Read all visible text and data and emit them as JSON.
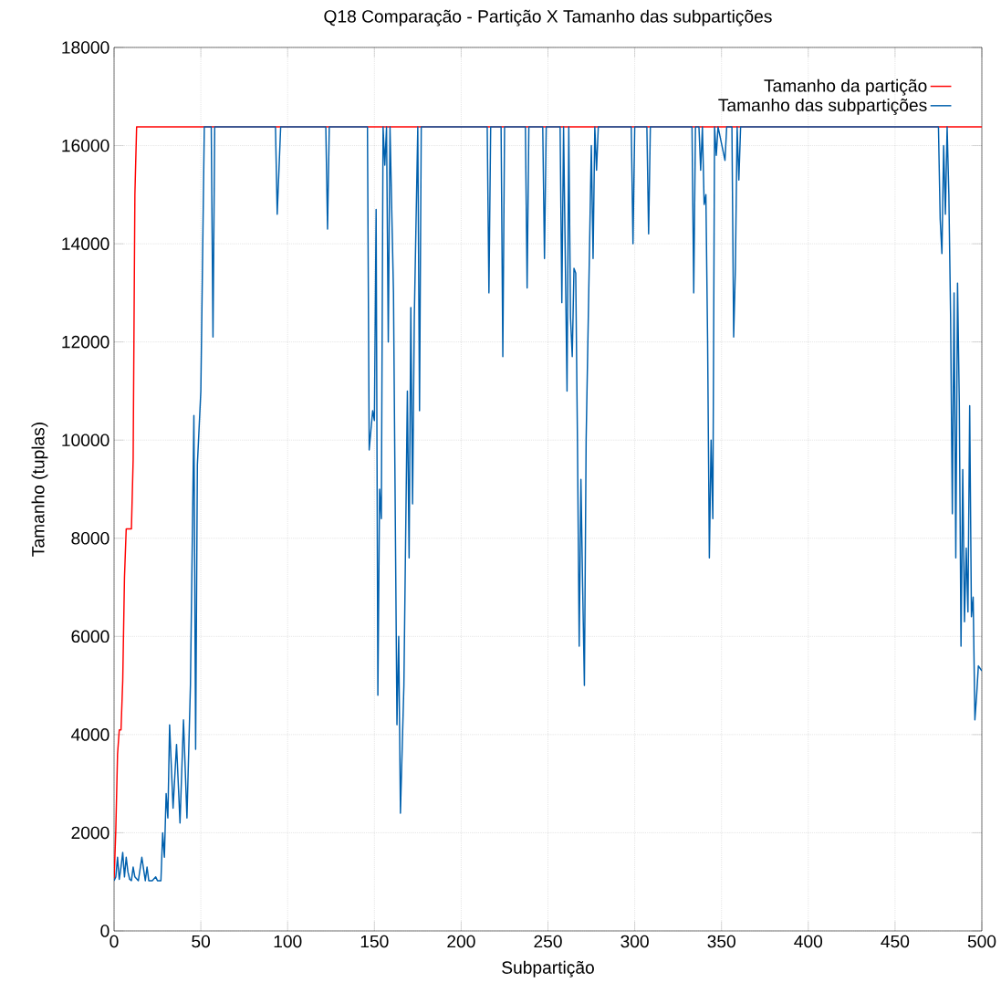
{
  "chart_data": {
    "type": "line",
    "title": "Q18 Comparação - Partição X Tamanho das subpartições",
    "xlabel": "Subpartição",
    "ylabel": "Tamanho (tuplas)",
    "xlim": [
      0,
      500
    ],
    "ylim": [
      0,
      18000
    ],
    "xticks": [
      0,
      50,
      100,
      150,
      200,
      250,
      300,
      350,
      400,
      450,
      500
    ],
    "yticks": [
      0,
      2000,
      4000,
      6000,
      8000,
      10000,
      12000,
      14000,
      16000,
      18000
    ],
    "grid": true,
    "legend": "top right",
    "series": [
      {
        "name": "Tamanho da partição",
        "color": "#ff0000",
        "x": [
          0,
          1,
          2,
          3,
          4,
          5,
          6,
          7,
          8,
          9,
          10,
          11,
          12,
          13,
          500
        ],
        "values": [
          1024,
          2048,
          3600,
          4096,
          4096,
          5100,
          7200,
          8192,
          8192,
          8192,
          8192,
          9600,
          15000,
          16384,
          16384
        ]
      },
      {
        "name": "Tamanho das subpartições",
        "color": "#0060ad",
        "x": [
          0,
          1,
          2,
          3,
          4,
          5,
          6,
          7,
          8,
          9,
          10,
          11,
          12,
          14,
          16,
          18,
          19,
          20,
          22,
          24,
          25,
          27,
          28,
          29,
          30,
          31,
          32,
          34,
          36,
          38,
          40,
          42,
          44,
          46,
          47,
          48,
          50,
          52,
          56,
          57,
          58,
          93,
          94,
          96,
          122,
          123,
          124,
          146,
          147,
          149,
          150,
          151,
          152,
          153,
          154,
          155,
          156,
          157,
          158,
          159,
          161,
          163,
          164,
          165,
          167,
          169,
          170,
          171,
          172,
          173,
          175,
          176,
          177,
          215,
          216,
          217,
          223,
          224,
          225,
          237,
          238,
          239,
          247,
          248,
          249,
          257,
          258,
          259,
          261,
          262,
          263,
          264,
          265,
          266,
          267,
          268,
          269,
          270,
          271,
          272,
          274,
          275,
          276,
          277,
          278,
          279,
          298,
          299,
          300,
          307,
          308,
          309,
          333,
          334,
          335,
          337,
          338,
          339,
          340,
          341,
          342,
          343,
          344,
          345,
          346,
          347,
          348,
          352,
          353,
          356,
          357,
          358,
          359,
          360,
          361,
          475,
          476,
          477,
          478,
          479,
          480,
          481,
          482,
          483,
          484,
          485,
          486,
          487,
          488,
          489,
          490,
          491,
          492,
          493,
          494,
          495,
          496,
          497,
          498,
          500
        ],
        "values": [
          1024,
          1100,
          1500,
          1050,
          1300,
          1600,
          1100,
          1500,
          1200,
          1050,
          1024,
          1300,
          1100,
          1024,
          1500,
          1024,
          1300,
          1024,
          1024,
          1100,
          1024,
          1024,
          2000,
          1500,
          2800,
          2300,
          4200,
          2500,
          3800,
          2200,
          4300,
          2300,
          5000,
          10500,
          3700,
          9500,
          11000,
          16384,
          16384,
          12100,
          16384,
          16384,
          14600,
          16384,
          16384,
          14300,
          16384,
          16384,
          9800,
          10600,
          10400,
          14700,
          4800,
          9000,
          8400,
          16384,
          15600,
          16384,
          12000,
          16384,
          13000,
          4200,
          6000,
          2400,
          5000,
          11000,
          7600,
          12700,
          8700,
          12500,
          16384,
          10600,
          16384,
          16384,
          13000,
          16384,
          16384,
          11700,
          16384,
          16384,
          13100,
          16384,
          16384,
          13700,
          16384,
          16384,
          12800,
          16384,
          11000,
          16384,
          12500,
          11700,
          13500,
          13400,
          10000,
          5800,
          9200,
          7000,
          5000,
          10000,
          14000,
          16000,
          13700,
          16384,
          15500,
          16384,
          16384,
          14000,
          16384,
          16384,
          14200,
          16384,
          16384,
          13000,
          16384,
          16384,
          15500,
          16384,
          14800,
          15000,
          12000,
          7600,
          10000,
          8400,
          16384,
          15800,
          16384,
          15700,
          16384,
          16384,
          12100,
          13500,
          16384,
          15300,
          16384,
          16384,
          14500,
          13800,
          16000,
          14600,
          16384,
          15000,
          12500,
          8500,
          13000,
          7600,
          13200,
          10800,
          5800,
          9400,
          6300,
          7800,
          6500,
          10700,
          6400,
          6800,
          4300,
          4800,
          5400,
          5300
        ]
      }
    ]
  }
}
